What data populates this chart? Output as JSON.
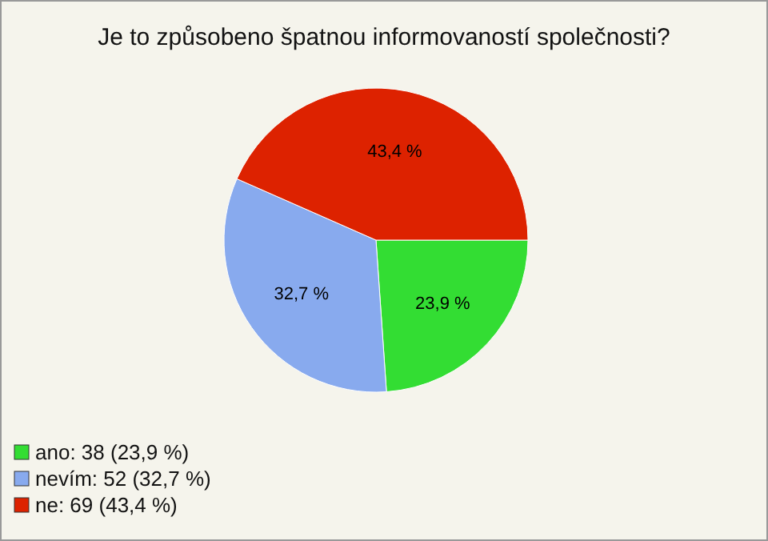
{
  "chart_data": {
    "type": "pie",
    "title": "Je to způsobeno špatnou informovaností společnosti?",
    "categories": [
      "ano: 38 (23,9 %)",
      "nevím: 52 (32,7 %)",
      "ne: 69 (43,4 %)"
    ],
    "values": [
      23.9,
      32.7,
      43.4
    ],
    "colors": [
      "#33dd33",
      "#88aaee",
      "#dd2200"
    ],
    "value_labels": [
      "23,9 %",
      "32,7 %",
      "43,4 %"
    ],
    "legend": "bottom left"
  }
}
